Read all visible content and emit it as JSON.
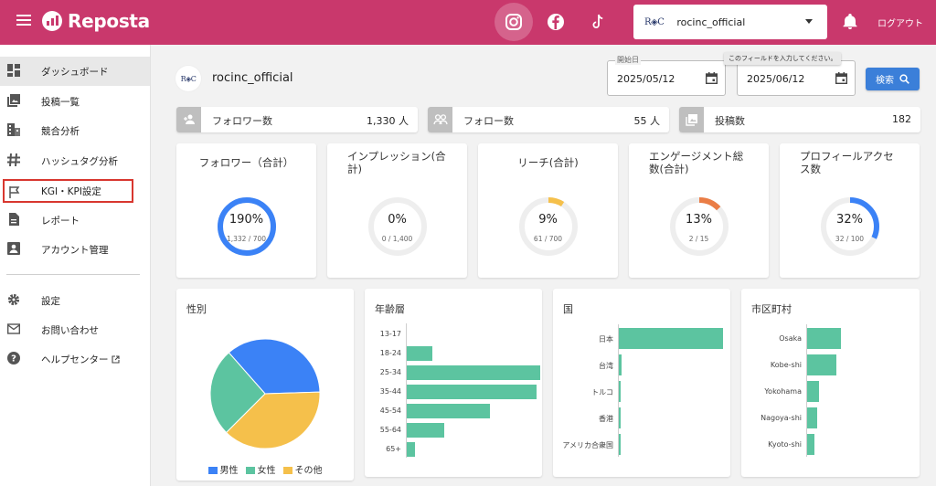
{
  "header": {
    "app_name": "Reposta",
    "social": [
      "instagram-icon",
      "facebook-icon",
      "tiktok-icon"
    ],
    "account": {
      "logo_text": "R◈C",
      "name": "rocinc_official"
    },
    "logout": "ログアウト",
    "color": "#c9386c"
  },
  "sidebar": {
    "items": [
      {
        "label": "ダッシュボード",
        "icon": "dashboard-icon"
      },
      {
        "label": "投稿一覧",
        "icon": "posts-icon"
      },
      {
        "label": "競合分析",
        "icon": "competitor-icon"
      },
      {
        "label": "ハッシュタグ分析",
        "icon": "hashtag-icon"
      },
      {
        "label": "KGI・KPI設定",
        "icon": "flag-icon"
      },
      {
        "label": "レポート",
        "icon": "report-icon"
      },
      {
        "label": "アカウント管理",
        "icon": "account-icon"
      },
      {
        "label": "設定",
        "icon": "gear-icon"
      },
      {
        "label": "お問い合わせ",
        "icon": "mail-icon"
      },
      {
        "label": "ヘルプセンター",
        "icon": "help-icon"
      }
    ]
  },
  "profile": {
    "name": "rocinc_official",
    "logo_text": "R◈C"
  },
  "filters": {
    "start_label": "開始日",
    "start_value": "2025/05/12",
    "end_value": "2025/06/12",
    "tooltip": "このフィールドを入力してください。",
    "search_label": "検索"
  },
  "stats": [
    {
      "label": "フォロワー数",
      "value": "1,330 人"
    },
    {
      "label": "フォロー数",
      "value": "55 人"
    },
    {
      "label": "投稿数",
      "value": "182"
    }
  ],
  "kpis": [
    {
      "title": "フォロワー（合計）",
      "percent": "190%",
      "sub": "1,332 / 700",
      "progress": 1.0,
      "color": "#3b82f6"
    },
    {
      "title": "インプレッション(合計)",
      "percent": "0%",
      "sub": "0 / 1,400",
      "progress": 0.0,
      "color": "#3b82f6"
    },
    {
      "title": "リーチ(合計)",
      "percent": "9%",
      "sub": "61 / 700",
      "progress": 0.09,
      "color": "#f5c04b"
    },
    {
      "title": "エンゲージメント総数(合計)",
      "percent": "13%",
      "sub": "2 / 15",
      "progress": 0.13,
      "color": "#ea7d46"
    },
    {
      "title": "プロフィールアクセス数",
      "percent": "32%",
      "sub": "32 / 100",
      "progress": 0.32,
      "color": "#3b82f6"
    }
  ],
  "panels": {
    "gender_title": "性別",
    "age_title": "年齢層",
    "country_title": "国",
    "city_title": "市区町村"
  },
  "chart_data": [
    {
      "type": "pie",
      "title": "性別",
      "categories": [
        "男性",
        "女性",
        "その他"
      ],
      "values": [
        36,
        26,
        38
      ],
      "colors": [
        "#3b82f6",
        "#5cc4a0",
        "#f5c04b"
      ],
      "legend": "bottom"
    },
    {
      "type": "bar",
      "title": "年齢層",
      "orientation": "horizontal",
      "categories": [
        "13-17",
        "18-24",
        "25-34",
        "35-44",
        "45-54",
        "55-64",
        "65+"
      ],
      "values": [
        0,
        19,
        100,
        97,
        62,
        28,
        6
      ],
      "color": "#5cc4a0"
    },
    {
      "type": "bar",
      "title": "国",
      "orientation": "horizontal",
      "categories": [
        "日本",
        "台湾",
        "トルコ",
        "香港",
        "アメリカ合衆国"
      ],
      "values": [
        100,
        3,
        1,
        1,
        0.5
      ],
      "color": "#5cc4a0"
    },
    {
      "type": "bar",
      "title": "市区町村",
      "orientation": "horizontal",
      "categories": [
        "Osaka",
        "Kobe-shi",
        "Yokohama",
        "Nagoya-shi",
        "Kyoto-shi"
      ],
      "values": [
        100,
        87,
        36,
        31,
        21
      ],
      "color": "#5cc4a0"
    }
  ]
}
